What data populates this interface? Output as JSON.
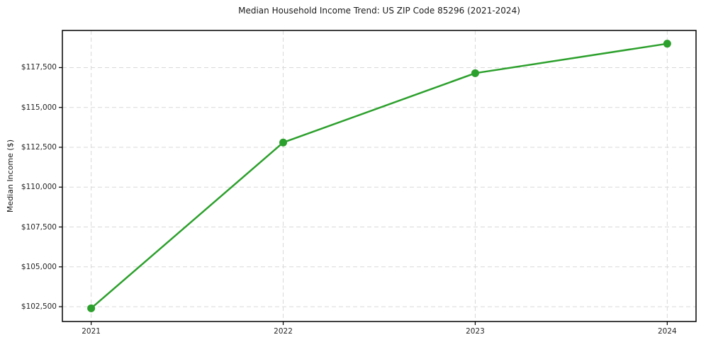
{
  "colors": {
    "line": "#2ca02c",
    "marker": "#2ca02c",
    "grid": "#d9d9d9",
    "spine": "#000000",
    "tick": "#000000",
    "text": "#262626",
    "background": "#ffffff"
  },
  "chart_data": {
    "type": "line",
    "title": "Median Household Income Trend: US ZIP Code 85296 (2021-2024)",
    "xlabel": "",
    "ylabel": "Median Income ($)",
    "categories": [
      "2021",
      "2022",
      "2023",
      "2024"
    ],
    "series": [
      {
        "name": "Median Household Income",
        "values": [
          102400,
          112800,
          117150,
          119000
        ]
      }
    ],
    "y_ticks": [
      102500,
      105000,
      107500,
      110000,
      112500,
      115000,
      117500
    ],
    "y_tick_labels": [
      "$102,500",
      "$105,000",
      "$107,500",
      "$110,000",
      "$112,500",
      "$115,000",
      "$117,500"
    ],
    "ylim": [
      101570,
      119830
    ],
    "xlim_index": [
      -0.15,
      3.15
    ],
    "grid": "both, dashed",
    "legend_position": "none",
    "marker": "circle",
    "line_width": 2.5,
    "marker_radius": 5.5
  }
}
